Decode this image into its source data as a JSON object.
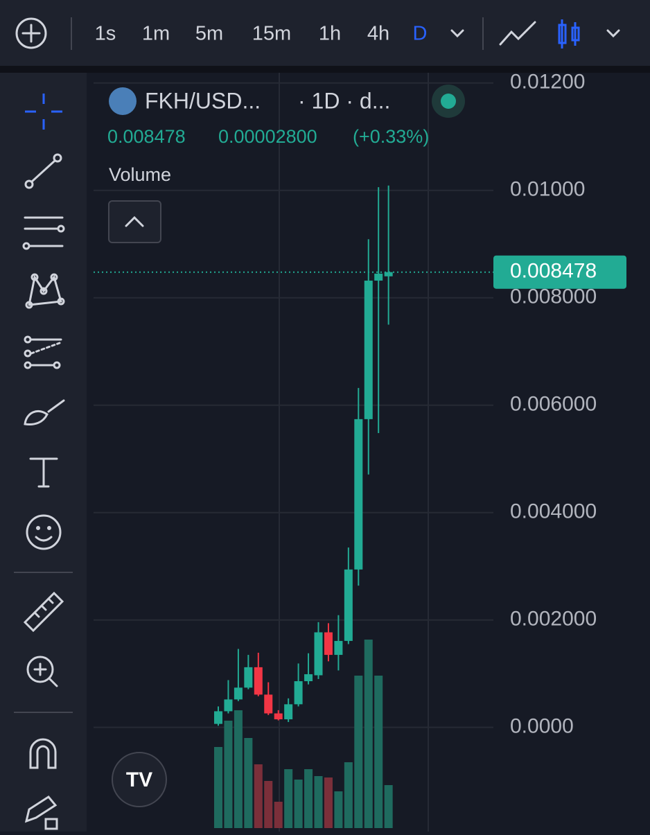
{
  "toolbar": {
    "intervals": [
      "1s",
      "1m",
      "5m",
      "15m",
      "1h",
      "4h",
      "D"
    ]
  },
  "chart_data": {
    "type": "candlestick",
    "symbol": "FKH/USD...",
    "resolution": "· 1D · d...",
    "last_price": "0.008478",
    "change": "0.00002800",
    "change_pct": "(+0.33%)",
    "volume_title": "Volume",
    "open": [
      6.5e-05,
      0.0003,
      0.00052,
      0.00074,
      0.00112,
      0.00061,
      0.00026,
      0.00015,
      0.00043,
      0.00086,
      0.00097,
      0.00177,
      0.00135,
      0.00161,
      0.00294,
      0.00574,
      0.00832,
      0.0084
    ],
    "high": [
      0.00039,
      0.00088,
      0.00146,
      0.00135,
      0.00139,
      0.00084,
      0.00032,
      0.00054,
      0.00119,
      0.00138,
      0.00196,
      0.00194,
      0.00209,
      0.00335,
      0.00632,
      0.00909,
      0.01006,
      0.01009
    ],
    "low": [
      3e-05,
      0.00026,
      0.00049,
      0.00071,
      0.00058,
      0.00023,
      0.00013,
      0.0001,
      0.00039,
      0.0008,
      0.0009,
      0.00123,
      0.00106,
      0.00155,
      0.00264,
      0.00471,
      0.00548,
      0.0075
    ],
    "close": [
      0.0003,
      0.00052,
      0.00074,
      0.00112,
      0.00061,
      0.00026,
      0.00015,
      0.00043,
      0.00086,
      0.00099,
      0.00177,
      0.00135,
      0.00161,
      0.00294,
      0.00574,
      0.00832,
      0.00845,
      0.008478
    ],
    "volume": [
      117,
      155,
      170,
      130,
      92,
      68,
      38,
      85,
      70,
      85,
      75,
      73,
      53,
      95,
      220,
      272,
      220,
      62
    ],
    "volume_lim": [
      0,
      300
    ],
    "up_color": "#22ab94",
    "down_color": "#f23645",
    "volume_up_color": "#1f6b5f",
    "volume_down_color": "#7b2f3a",
    "current_price": 0.008478,
    "ylim": [
      -0.00194,
      0.01232
    ],
    "yticks": [
      {
        "value": 0,
        "label": "0.0000"
      },
      {
        "value": 0.002,
        "label": "0.002000"
      },
      {
        "value": 0.004,
        "label": "0.004000"
      },
      {
        "value": 0.006,
        "label": "0.006000"
      },
      {
        "value": 0.008,
        "label": "0.008000"
      },
      {
        "value": 0.01,
        "label": "0.01000"
      },
      {
        "value": 0.012,
        "label": "0.01200"
      }
    ],
    "grid": true
  }
}
